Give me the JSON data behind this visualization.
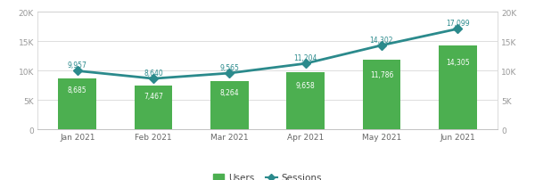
{
  "months": [
    "Jan 2021",
    "Feb 2021",
    "Mar 2021",
    "Apr 2021",
    "May 2021",
    "Jun 2021"
  ],
  "users": [
    8685,
    7467,
    8264,
    9658,
    11786,
    14305
  ],
  "sessions": [
    9957,
    8640,
    9565,
    11204,
    14302,
    17099
  ],
  "bar_color": "#4CAF50",
  "line_color": "#2B8A8C",
  "bar_label_color": "#ffffff",
  "line_label_color": "#2B8A8C",
  "ylim": [
    0,
    20000
  ],
  "yticks": [
    0,
    5000,
    10000,
    15000,
    20000
  ],
  "ytick_labels": [
    "0",
    "5K",
    "10K",
    "15K",
    "20K"
  ],
  "legend_bar_label": "Users",
  "legend_line_label": "Sessions",
  "background_color": "#ffffff",
  "grid_color": "#dddddd",
  "bar_width": 0.5,
  "line_marker": "D",
  "line_marker_size": 5,
  "line_width": 2.0,
  "frame_color": "#cccccc"
}
